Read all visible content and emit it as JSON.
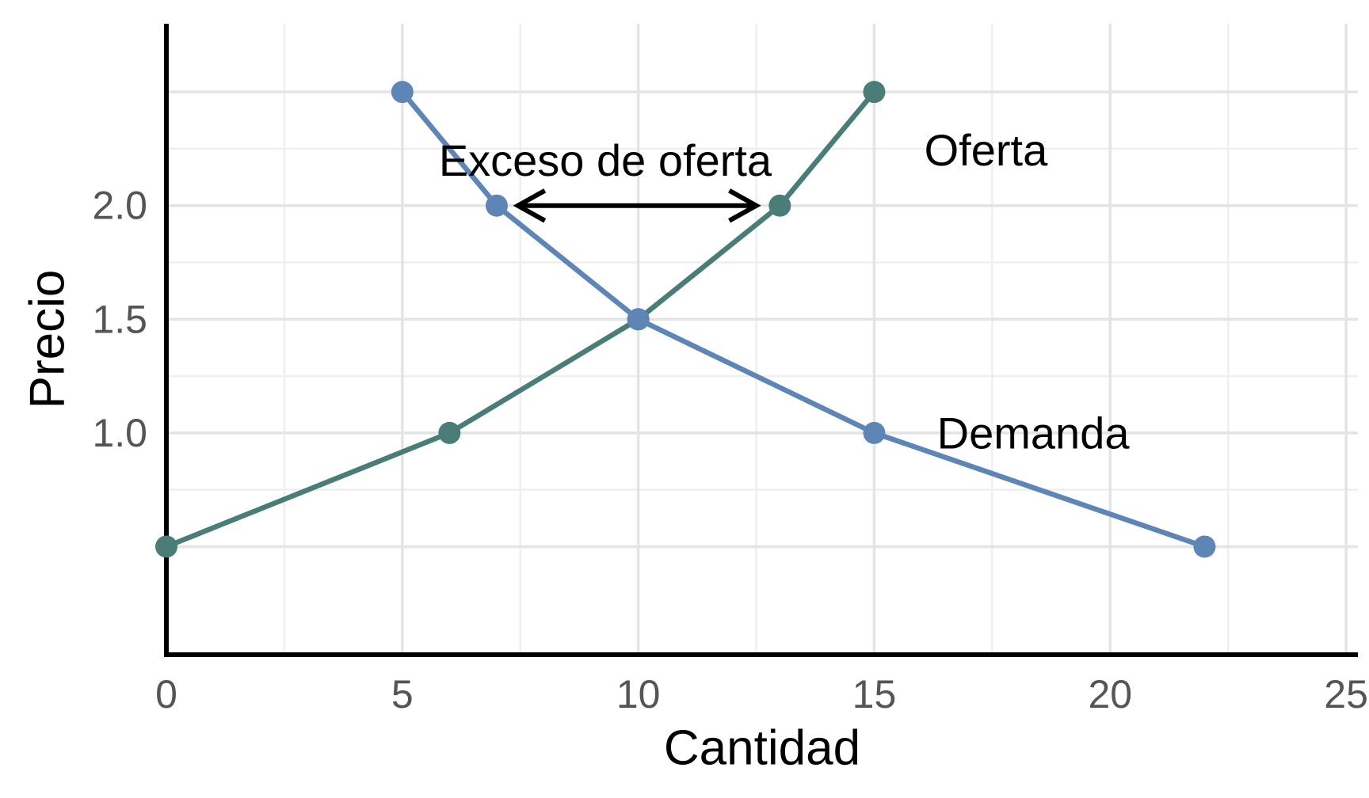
{
  "figure": {
    "background": "#ffffff"
  },
  "chart_data": {
    "type": "line",
    "title": "",
    "xlabel": "Cantidad",
    "ylabel": "Precio",
    "xlim": [
      0,
      25.25
    ],
    "ylim": [
      0.0245,
      2.8
    ],
    "grid": true,
    "x_ticks": [
      0,
      5,
      10,
      15,
      20,
      25
    ],
    "x_tick_labels": [
      "0",
      "5",
      "10",
      "15",
      "20",
      "25"
    ],
    "y_ticks": [
      1.0,
      1.5,
      2.0
    ],
    "y_tick_labels": [
      "1.0",
      "1.5",
      "2.0"
    ],
    "x_major_gridlines": [
      5,
      10,
      15,
      20,
      25
    ],
    "x_minor_gridlines": [
      2.5,
      7.5,
      12.5,
      17.5,
      22.5
    ],
    "y_major_gridlines": [
      0.5,
      1.0,
      1.5,
      2.0,
      2.5
    ],
    "y_minor_gridlines": [
      0.75,
      1.25,
      1.75,
      2.25
    ],
    "legend_position": "inline-labels",
    "series": [
      {
        "name": "Oferta",
        "color": "#4a7d78",
        "points": [
          [
            0,
            0.5
          ],
          [
            6,
            1.0
          ],
          [
            10,
            1.5
          ],
          [
            13,
            2.0
          ],
          [
            15,
            2.5
          ]
        ],
        "label": {
          "text": "Oferta",
          "x": 16.06,
          "y": 2.245,
          "anchor": "start"
        }
      },
      {
        "name": "Demanda",
        "color": "#5d85b6",
        "points": [
          [
            5,
            2.5
          ],
          [
            7,
            2.0
          ],
          [
            10,
            1.5
          ],
          [
            15,
            1.0
          ],
          [
            22,
            0.5
          ]
        ],
        "label": {
          "text": "Demanda",
          "x": 16.33,
          "y": 1.0,
          "anchor": "start"
        }
      }
    ],
    "annotations": [
      {
        "text": "Exceso de oferta",
        "x": 9.3,
        "y": 2.2,
        "color": "#000000",
        "arrow": {
          "x1": 7.45,
          "x2": 12.5,
          "y": 2.0,
          "double_headed": true,
          "color": "#000000"
        }
      }
    ],
    "style": {
      "spine_color": "#000000",
      "grid_major_color": "#e4e4e4",
      "grid_minor_color": "#efefef",
      "tick_label_color": "#555555",
      "axis_title_color": "#000000",
      "annotation_color": "#000000"
    }
  }
}
